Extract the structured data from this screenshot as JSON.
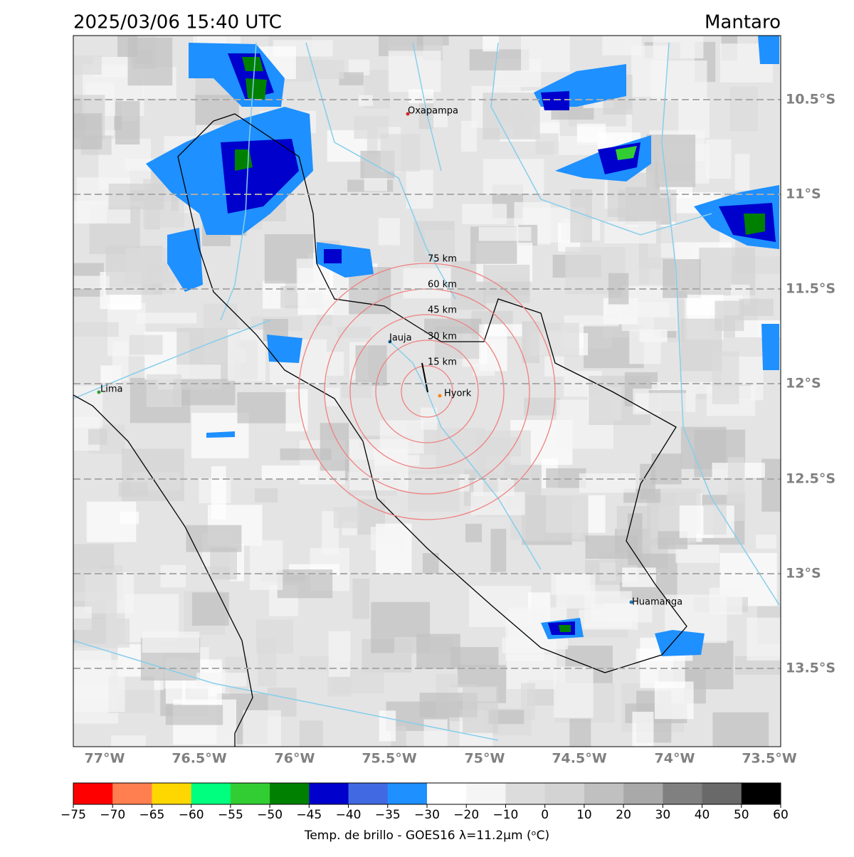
{
  "header": {
    "title": "2025/03/06 15:40 UTC",
    "region": "Mantaro"
  },
  "map": {
    "lat_labels": [
      "10.5°S",
      "11°S",
      "11.5°S",
      "12°S",
      "12.5°S",
      "13°S",
      "13.5°S"
    ],
    "lon_labels": [
      "77°W",
      "76.5°W",
      "76°W",
      "75.5°W",
      "75°W",
      "74.5°W",
      "74°W",
      "73.5°W"
    ],
    "cities": [
      "Oxapampa",
      "Lima",
      "Jauja",
      "Hyork",
      "Huamanga"
    ],
    "ring_labels": [
      "15 km",
      "30 km",
      "45 km",
      "60 km",
      "75 km"
    ]
  },
  "colorbar": {
    "colors": [
      "#ff0000",
      "#ff7f50",
      "#ffd700",
      "#00ff7f",
      "#32cd32",
      "#008000",
      "#0000cd",
      "#4169e1",
      "#1e90ff",
      "#ffffff",
      "#f5f5f5",
      "#dcdcdc",
      "#d3d3d3",
      "#c0c0c0",
      "#a9a9a9",
      "#808080",
      "#696969",
      "#000000"
    ],
    "tick_labels": [
      "−75",
      "−70",
      "−65",
      "−60",
      "−55",
      "−50",
      "−45",
      "−40",
      "−35",
      "−30",
      "−20",
      "−10",
      "0",
      "10",
      "20",
      "30",
      "40",
      "50",
      "60"
    ],
    "label": "Temp. de brillo - GOES16 λ=11.2μm (ᵒC)"
  }
}
